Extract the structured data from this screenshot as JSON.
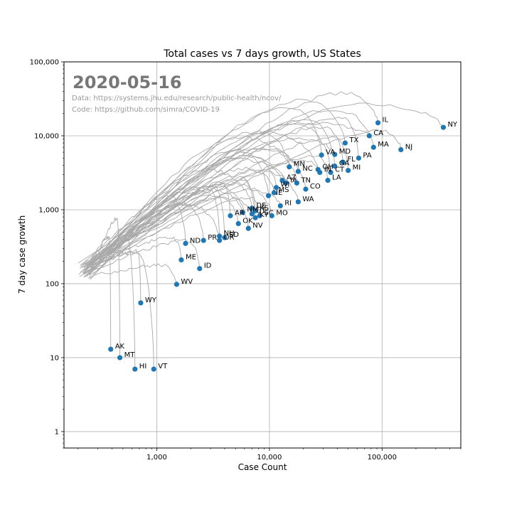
{
  "colors": {
    "point": "#1f77b4",
    "trail": "#a9a9a9",
    "grid": "#b0b0b0",
    "date_text": "#777777",
    "source_text": "#999999"
  },
  "chart_data": {
    "type": "scatter",
    "title": "Total cases vs 7 days growth, US States",
    "xlabel": "Case Count",
    "ylabel": "7 day case growth",
    "date_label": "2020-05-16",
    "source_lines": [
      "Data: https://systems.jhu.edu/research/public-health/ncov/",
      "Code: https://github.com/simra/COVID-19"
    ],
    "x_scale": "log",
    "y_scale": "log",
    "xlim": [
      150,
      500000
    ],
    "ylim": [
      0.6,
      100000
    ],
    "grid": true,
    "x_ticks": [
      {
        "value": 1000,
        "label": "1,000"
      },
      {
        "value": 10000,
        "label": "10,000"
      },
      {
        "value": 100000,
        "label": "100,000"
      }
    ],
    "y_ticks": [
      {
        "value": 1,
        "label": "1"
      },
      {
        "value": 10,
        "label": "10"
      },
      {
        "value": 100,
        "label": "100"
      },
      {
        "value": 1000,
        "label": "1,000"
      },
      {
        "value": 10000,
        "label": "10,000"
      },
      {
        "value": 100000,
        "label": "100,000"
      }
    ],
    "points": [
      {
        "label": "NY",
        "x": 350000,
        "y": 13000
      },
      {
        "label": "NJ",
        "x": 147000,
        "y": 6500
      },
      {
        "label": "IL",
        "x": 92000,
        "y": 15000
      },
      {
        "label": "CA",
        "x": 77000,
        "y": 10000
      },
      {
        "label": "MA",
        "x": 84000,
        "y": 7000
      },
      {
        "label": "TX",
        "x": 47000,
        "y": 8000
      },
      {
        "label": "PA",
        "x": 62000,
        "y": 5000
      },
      {
        "label": "MD",
        "x": 38000,
        "y": 5600
      },
      {
        "label": "VA",
        "x": 29000,
        "y": 5500
      },
      {
        "label": "FL",
        "x": 45000,
        "y": 4400
      },
      {
        "label": "GA",
        "x": 38000,
        "y": 3900
      },
      {
        "label": "MI",
        "x": 50000,
        "y": 3400
      },
      {
        "label": "CT",
        "x": 35000,
        "y": 3200
      },
      {
        "label": "OH",
        "x": 27000,
        "y": 3500
      },
      {
        "label": "IN",
        "x": 28000,
        "y": 3200
      },
      {
        "label": "LA",
        "x": 33000,
        "y": 2500
      },
      {
        "label": "MN",
        "x": 15000,
        "y": 3800
      },
      {
        "label": "NC",
        "x": 18000,
        "y": 3300
      },
      {
        "label": "AZ",
        "x": 13000,
        "y": 2500
      },
      {
        "label": "IA",
        "x": 14000,
        "y": 2300
      },
      {
        "label": "TN",
        "x": 17500,
        "y": 2300
      },
      {
        "label": "WI",
        "x": 11500,
        "y": 2000
      },
      {
        "label": "CO",
        "x": 21000,
        "y": 1900
      },
      {
        "label": "NE",
        "x": 9800,
        "y": 1550
      },
      {
        "label": "MS",
        "x": 11000,
        "y": 1700
      },
      {
        "label": "WA",
        "x": 18000,
        "y": 1280
      },
      {
        "label": "RI",
        "x": 12500,
        "y": 1130
      },
      {
        "label": "DE",
        "x": 7000,
        "y": 1050
      },
      {
        "label": "KS",
        "x": 7500,
        "y": 970
      },
      {
        "label": "NM",
        "x": 5800,
        "y": 920
      },
      {
        "label": "UT",
        "x": 7000,
        "y": 880
      },
      {
        "label": "SC",
        "x": 8200,
        "y": 830
      },
      {
        "label": "AR",
        "x": 4500,
        "y": 830
      },
      {
        "label": "MO",
        "x": 10500,
        "y": 830
      },
      {
        "label": "KY",
        "x": 7500,
        "y": 780
      },
      {
        "label": "OK",
        "x": 5300,
        "y": 650
      },
      {
        "label": "NV",
        "x": 6500,
        "y": 560
      },
      {
        "label": "NH",
        "x": 3600,
        "y": 440
      },
      {
        "label": "SD",
        "x": 4000,
        "y": 420
      },
      {
        "label": "OR",
        "x": 3600,
        "y": 385
      },
      {
        "label": "PR",
        "x": 2600,
        "y": 385
      },
      {
        "label": "ND",
        "x": 1800,
        "y": 350
      },
      {
        "label": "ME",
        "x": 1650,
        "y": 210
      },
      {
        "label": "ID",
        "x": 2400,
        "y": 160
      },
      {
        "label": "WV",
        "x": 1500,
        "y": 98
      },
      {
        "label": "WY",
        "x": 720,
        "y": 55
      },
      {
        "label": "AK",
        "x": 390,
        "y": 13
      },
      {
        "label": "MT",
        "x": 470,
        "y": 10
      },
      {
        "label": "HI",
        "x": 640,
        "y": 7
      },
      {
        "label": "VT",
        "x": 940,
        "y": 7
      }
    ]
  }
}
